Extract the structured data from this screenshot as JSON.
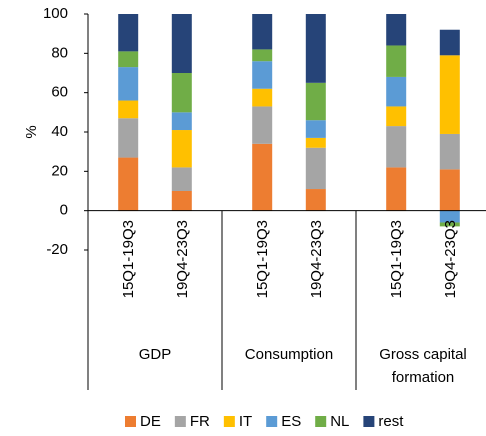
{
  "chart_data": {
    "type": "bar",
    "stacked": true,
    "y_label": "%",
    "categories": [
      "15Q1-19Q3",
      "19Q4-23Q3",
      "15Q1-19Q3",
      "19Q4-23Q3",
      "15Q1-19Q3",
      "19Q4-23Q3"
    ],
    "groups": [
      {
        "name": "GDP",
        "size": 2
      },
      {
        "name": "Consumption",
        "size": 2
      },
      {
        "name": "Gross capital formation",
        "size": 2
      }
    ],
    "series": [
      {
        "name": "DE",
        "color": "#ED7D31",
        "values": [
          27,
          10,
          34,
          11,
          22,
          21
        ]
      },
      {
        "name": "FR",
        "color": "#A5A5A5",
        "values": [
          20,
          12,
          19,
          21,
          21,
          18
        ]
      },
      {
        "name": "IT",
        "color": "#FFC000",
        "values": [
          9,
          19,
          9,
          5,
          10,
          40
        ]
      },
      {
        "name": "ES",
        "color": "#5B9BD5",
        "values": [
          17,
          9,
          14,
          9,
          15,
          -6
        ]
      },
      {
        "name": "NL",
        "color": "#70AD47",
        "values": [
          8,
          20,
          6,
          19,
          16,
          -2
        ]
      },
      {
        "name": "rest",
        "color": "#264478",
        "values": [
          19,
          30,
          18,
          35,
          16,
          13
        ]
      }
    ],
    "ylim": [
      -20,
      100
    ],
    "yticks": [
      -20,
      0,
      20,
      40,
      60,
      80,
      100
    ],
    "grid": false,
    "legend": "bottom"
  }
}
